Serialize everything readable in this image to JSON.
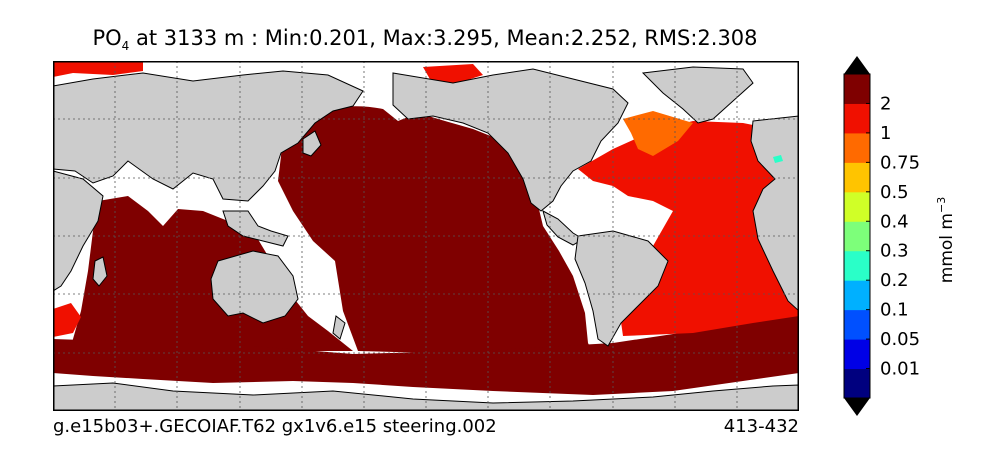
{
  "title": {
    "variable": "PO",
    "subscript": "4",
    "rest": " at 3133 m : Min:0.201, Max:3.295, Mean:2.252, RMS:2.308"
  },
  "footer": {
    "run_name": "g.e15b03+.GECOIAF.T62 gx1v6.e15 steering.002",
    "years": "413-432"
  },
  "colorbar": {
    "unit": "mmol m",
    "unit_exponent": "−3",
    "levels": [
      "0.01",
      "0.05",
      "0.1",
      "0.2",
      "0.3",
      "0.4",
      "0.5",
      "0.75",
      "1",
      "2"
    ],
    "colors": [
      "#00007f",
      "#0000e6",
      "#0050ff",
      "#00b0ff",
      "#2affc8",
      "#7dff7a",
      "#d0ff27",
      "#ffc400",
      "#ff6a00",
      "#f01000",
      "#7f0000"
    ]
  },
  "chart_data": {
    "type": "heatmap",
    "field": "PO4 concentration",
    "depth": "3133 m",
    "stats": {
      "min": 0.201,
      "max": 3.295,
      "mean": 2.252,
      "rms": 2.308
    },
    "colors_meaning": {
      "land": "#cccccc",
      "no_data": "#ffffff",
      "pacific_indian_southern": "#7f0000",
      "atlantic": "#f01000",
      "labrador_sea": "#ff6a00"
    },
    "grid": true
  }
}
